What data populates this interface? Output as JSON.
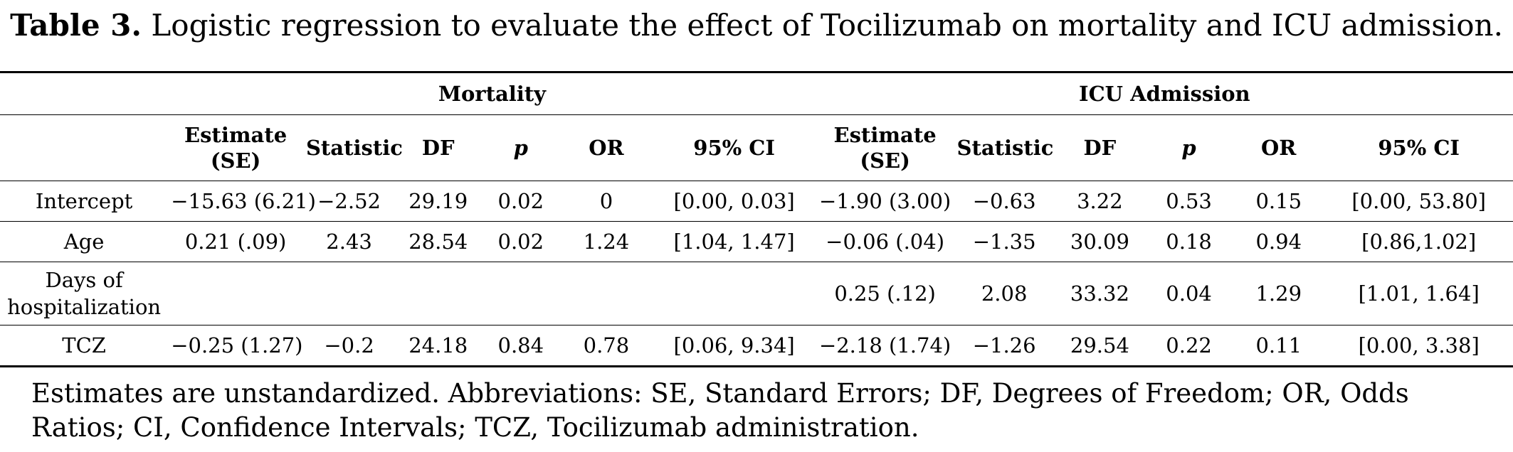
{
  "caption": {
    "label": "Table 3.",
    "text": "Logistic regression to evaluate the effect of Tocilizumab on mortality and ICU admission."
  },
  "groups": {
    "mortality": "Mortality",
    "icu": "ICU Admission"
  },
  "columns": {
    "estimate": "Estimate (SE)",
    "statistic": "Statistic",
    "df": "DF",
    "p": "p",
    "or": "OR",
    "ci": "95% CI"
  },
  "rows": [
    {
      "label": "Intercept",
      "mortality": [
        "−15.63 (6.21)",
        "−2.52",
        "29.19",
        "0.02",
        "0",
        "[0.00, 0.03]"
      ],
      "icu": [
        "−1.90 (3.00)",
        "−0.63",
        "3.22",
        "0.53",
        "0.15",
        "[0.00, 53.80]"
      ]
    },
    {
      "label": "Age",
      "mortality": [
        "0.21 (.09)",
        "2.43",
        "28.54",
        "0.02",
        "1.24",
        "[1.04, 1.47]"
      ],
      "icu": [
        "−0.06 (.04)",
        "−1.35",
        "30.09",
        "0.18",
        "0.94",
        "[0.86,1.02]"
      ]
    },
    {
      "label": "Days of hospitalization",
      "mortality": [
        "",
        "",
        "",
        "",
        "",
        ""
      ],
      "icu": [
        "0.25 (.12)",
        "2.08",
        "33.32",
        "0.04",
        "1.29",
        "[1.01, 1.64]"
      ]
    },
    {
      "label": "TCZ",
      "mortality": [
        "−0.25 (1.27)",
        "−0.2",
        "24.18",
        "0.84",
        "0.78",
        "[0.06, 9.34]"
      ],
      "icu": [
        "−2.18 (1.74)",
        "−1.26",
        "29.54",
        "0.22",
        "0.11",
        "[0.00, 3.38]"
      ]
    }
  ],
  "note": "Estimates are unstandardized.  Abbreviations: SE, Standard Errors; DF, Degrees of Freedom; OR, Odds Ratios; CI, Confidence Intervals; TCZ, Tocilizumab administration."
}
